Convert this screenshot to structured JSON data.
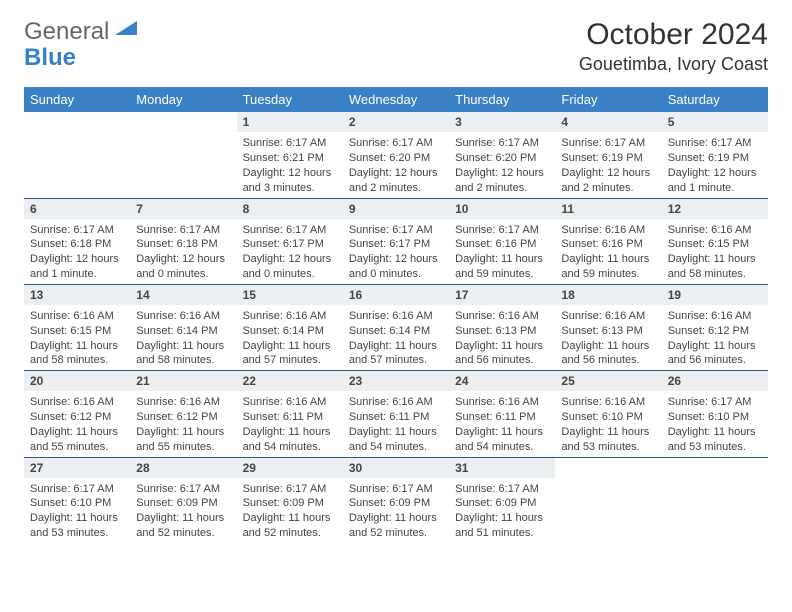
{
  "logo": {
    "text1": "General",
    "text2": "Blue"
  },
  "title": "October 2024",
  "location": "Gouetimba, Ivory Coast",
  "colors": {
    "header_bg": "#3a80c4",
    "header_text": "#ffffff",
    "daynum_bg": "#eceff1",
    "border": "#2a5a8a",
    "body_text": "#444444"
  },
  "weekdays": [
    "Sunday",
    "Monday",
    "Tuesday",
    "Wednesday",
    "Thursday",
    "Friday",
    "Saturday"
  ],
  "weeks": [
    [
      null,
      null,
      {
        "n": "1",
        "sr": "Sunrise: 6:17 AM",
        "ss": "Sunset: 6:21 PM",
        "dl": "Daylight: 12 hours and 3 minutes."
      },
      {
        "n": "2",
        "sr": "Sunrise: 6:17 AM",
        "ss": "Sunset: 6:20 PM",
        "dl": "Daylight: 12 hours and 2 minutes."
      },
      {
        "n": "3",
        "sr": "Sunrise: 6:17 AM",
        "ss": "Sunset: 6:20 PM",
        "dl": "Daylight: 12 hours and 2 minutes."
      },
      {
        "n": "4",
        "sr": "Sunrise: 6:17 AM",
        "ss": "Sunset: 6:19 PM",
        "dl": "Daylight: 12 hours and 2 minutes."
      },
      {
        "n": "5",
        "sr": "Sunrise: 6:17 AM",
        "ss": "Sunset: 6:19 PM",
        "dl": "Daylight: 12 hours and 1 minute."
      }
    ],
    [
      {
        "n": "6",
        "sr": "Sunrise: 6:17 AM",
        "ss": "Sunset: 6:18 PM",
        "dl": "Daylight: 12 hours and 1 minute."
      },
      {
        "n": "7",
        "sr": "Sunrise: 6:17 AM",
        "ss": "Sunset: 6:18 PM",
        "dl": "Daylight: 12 hours and 0 minutes."
      },
      {
        "n": "8",
        "sr": "Sunrise: 6:17 AM",
        "ss": "Sunset: 6:17 PM",
        "dl": "Daylight: 12 hours and 0 minutes."
      },
      {
        "n": "9",
        "sr": "Sunrise: 6:17 AM",
        "ss": "Sunset: 6:17 PM",
        "dl": "Daylight: 12 hours and 0 minutes."
      },
      {
        "n": "10",
        "sr": "Sunrise: 6:17 AM",
        "ss": "Sunset: 6:16 PM",
        "dl": "Daylight: 11 hours and 59 minutes."
      },
      {
        "n": "11",
        "sr": "Sunrise: 6:16 AM",
        "ss": "Sunset: 6:16 PM",
        "dl": "Daylight: 11 hours and 59 minutes."
      },
      {
        "n": "12",
        "sr": "Sunrise: 6:16 AM",
        "ss": "Sunset: 6:15 PM",
        "dl": "Daylight: 11 hours and 58 minutes."
      }
    ],
    [
      {
        "n": "13",
        "sr": "Sunrise: 6:16 AM",
        "ss": "Sunset: 6:15 PM",
        "dl": "Daylight: 11 hours and 58 minutes."
      },
      {
        "n": "14",
        "sr": "Sunrise: 6:16 AM",
        "ss": "Sunset: 6:14 PM",
        "dl": "Daylight: 11 hours and 58 minutes."
      },
      {
        "n": "15",
        "sr": "Sunrise: 6:16 AM",
        "ss": "Sunset: 6:14 PM",
        "dl": "Daylight: 11 hours and 57 minutes."
      },
      {
        "n": "16",
        "sr": "Sunrise: 6:16 AM",
        "ss": "Sunset: 6:14 PM",
        "dl": "Daylight: 11 hours and 57 minutes."
      },
      {
        "n": "17",
        "sr": "Sunrise: 6:16 AM",
        "ss": "Sunset: 6:13 PM",
        "dl": "Daylight: 11 hours and 56 minutes."
      },
      {
        "n": "18",
        "sr": "Sunrise: 6:16 AM",
        "ss": "Sunset: 6:13 PM",
        "dl": "Daylight: 11 hours and 56 minutes."
      },
      {
        "n": "19",
        "sr": "Sunrise: 6:16 AM",
        "ss": "Sunset: 6:12 PM",
        "dl": "Daylight: 11 hours and 56 minutes."
      }
    ],
    [
      {
        "n": "20",
        "sr": "Sunrise: 6:16 AM",
        "ss": "Sunset: 6:12 PM",
        "dl": "Daylight: 11 hours and 55 minutes."
      },
      {
        "n": "21",
        "sr": "Sunrise: 6:16 AM",
        "ss": "Sunset: 6:12 PM",
        "dl": "Daylight: 11 hours and 55 minutes."
      },
      {
        "n": "22",
        "sr": "Sunrise: 6:16 AM",
        "ss": "Sunset: 6:11 PM",
        "dl": "Daylight: 11 hours and 54 minutes."
      },
      {
        "n": "23",
        "sr": "Sunrise: 6:16 AM",
        "ss": "Sunset: 6:11 PM",
        "dl": "Daylight: 11 hours and 54 minutes."
      },
      {
        "n": "24",
        "sr": "Sunrise: 6:16 AM",
        "ss": "Sunset: 6:11 PM",
        "dl": "Daylight: 11 hours and 54 minutes."
      },
      {
        "n": "25",
        "sr": "Sunrise: 6:16 AM",
        "ss": "Sunset: 6:10 PM",
        "dl": "Daylight: 11 hours and 53 minutes."
      },
      {
        "n": "26",
        "sr": "Sunrise: 6:17 AM",
        "ss": "Sunset: 6:10 PM",
        "dl": "Daylight: 11 hours and 53 minutes."
      }
    ],
    [
      {
        "n": "27",
        "sr": "Sunrise: 6:17 AM",
        "ss": "Sunset: 6:10 PM",
        "dl": "Daylight: 11 hours and 53 minutes."
      },
      {
        "n": "28",
        "sr": "Sunrise: 6:17 AM",
        "ss": "Sunset: 6:09 PM",
        "dl": "Daylight: 11 hours and 52 minutes."
      },
      {
        "n": "29",
        "sr": "Sunrise: 6:17 AM",
        "ss": "Sunset: 6:09 PM",
        "dl": "Daylight: 11 hours and 52 minutes."
      },
      {
        "n": "30",
        "sr": "Sunrise: 6:17 AM",
        "ss": "Sunset: 6:09 PM",
        "dl": "Daylight: 11 hours and 52 minutes."
      },
      {
        "n": "31",
        "sr": "Sunrise: 6:17 AM",
        "ss": "Sunset: 6:09 PM",
        "dl": "Daylight: 11 hours and 51 minutes."
      },
      null,
      null
    ]
  ]
}
